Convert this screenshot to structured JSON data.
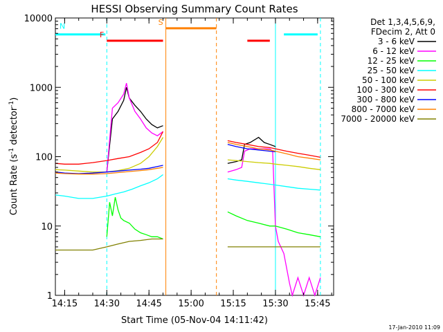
{
  "chart_data": {
    "type": "line",
    "title": "HESSI Observing Summary Count Rates",
    "xlabel": "Start Time (05-Nov-04 14:11:42)",
    "ylabel_main": "Count Rate (s",
    "ylabel_sup1": "-1",
    "ylabel_mid": " detector",
    "ylabel_sup2": "-1",
    "ylabel_end": ")",
    "y_scale": "log",
    "ylim": [
      1,
      10000
    ],
    "xlim": [
      "14:11:42",
      "15:50:42"
    ],
    "x_ticks": [
      "14:15",
      "14:30",
      "14:45",
      "15:00",
      "15:15",
      "15:30",
      "15:45"
    ],
    "y_ticks": [
      "1",
      "10",
      "100",
      "1000",
      "10000"
    ],
    "legend": {
      "header1": "Det 1,3,4,5,6,9,",
      "header2": "FDecim 2, Att 0",
      "items": [
        {
          "label": "3 - 6 keV",
          "color": "#000000"
        },
        {
          "label": "6 - 12 keV",
          "color": "#ff00ff"
        },
        {
          "label": "12 - 25 keV",
          "color": "#00ff00"
        },
        {
          "label": "25 - 50 keV",
          "color": "#00ffff"
        },
        {
          "label": "50 - 100 keV",
          "color": "#cccc00"
        },
        {
          "label": "100 - 300 keV",
          "color": "#ff0000"
        },
        {
          "label": "300 - 800 keV",
          "color": "#0000ff"
        },
        {
          "label": "800 - 7000 keV",
          "color": "#ff8000"
        },
        {
          "label": "7000 - 20000 keV",
          "color": "#808000"
        }
      ]
    },
    "flags": [
      {
        "label": "N",
        "color": "#00ffff",
        "value": 5800,
        "segments": [
          [
            "14:11:42",
            "14:29:30"
          ],
          [
            "15:33:00",
            "15:45:00"
          ]
        ]
      },
      {
        "label": "F",
        "color": "#ff0000",
        "value": 4700,
        "segments": [
          [
            "14:30:00",
            "14:50:00"
          ],
          [
            "15:20:00",
            "15:28:00"
          ]
        ]
      },
      {
        "label": "S",
        "color": "#ff8000",
        "value": 7100,
        "segments": [
          [
            "14:51:00",
            "15:09:00"
          ]
        ]
      }
    ],
    "saa_lines": [
      {
        "time": "14:30:00",
        "color": "#00ffff",
        "style": "dashed"
      },
      {
        "time": "14:51:00",
        "color": "#ff8000",
        "style": "solid"
      },
      {
        "time": "15:09:00",
        "color": "#ff8000",
        "style": "dashed"
      },
      {
        "time": "15:30:00",
        "color": "#00ffff",
        "style": "solid"
      },
      {
        "time": "15:46:00",
        "color": "#00ffff",
        "style": "dashed"
      }
    ],
    "series": [
      {
        "name": "3 - 6 keV",
        "color": "#000000",
        "segments": [
          {
            "x": [
              "14:30",
              "14:32",
              "14:34",
              "14:36",
              "14:37",
              "14:38",
              "14:40",
              "14:42",
              "14:44",
              "14:46",
              "14:48",
              "14:50"
            ],
            "y": [
              60,
              350,
              450,
              650,
              1000,
              700,
              550,
              450,
              350,
              290,
              260,
              280
            ]
          },
          {
            "x": [
              "15:13",
              "15:16",
              "15:18",
              "15:19",
              "15:21",
              "15:24",
              "15:26",
              "15:28",
              "15:30"
            ],
            "y": [
              80,
              85,
              90,
              150,
              160,
              190,
              160,
              150,
              140
            ]
          }
        ]
      },
      {
        "name": "6 - 12 keV",
        "color": "#ff00ff",
        "segments": [
          {
            "x": [
              "14:30",
              "14:32",
              "14:34",
              "14:36",
              "14:37",
              "14:38",
              "14:40",
              "14:42",
              "14:44",
              "14:46",
              "14:48",
              "14:50"
            ],
            "y": [
              60,
              500,
              600,
              800,
              1150,
              700,
              450,
              350,
              260,
              220,
              200,
              230
            ]
          },
          {
            "x": [
              "15:13",
              "15:16",
              "15:18",
              "15:19",
              "15:21",
              "15:24",
              "15:26",
              "15:28",
              "15:29",
              "15:30",
              "15:31",
              "15:33",
              "15:35",
              "15:36",
              "15:38",
              "15:40",
              "15:42",
              "15:44",
              "15:46"
            ],
            "y": [
              60,
              65,
              70,
              120,
              130,
              130,
              130,
              130,
              120,
              10,
              6,
              4,
              1.5,
              1,
              1.8,
              1,
              1.8,
              1,
              1.8
            ]
          }
        ]
      },
      {
        "name": "12 - 25 keV",
        "color": "#00ff00",
        "segments": [
          {
            "x": [
              "14:30",
              "14:31",
              "14:32",
              "14:33",
              "14:34",
              "14:35",
              "14:36",
              "14:38",
              "14:40",
              "14:42",
              "14:44",
              "14:46",
              "14:48",
              "14:50"
            ],
            "y": [
              7,
              22,
              14,
              26,
              17,
              13,
              12,
              11,
              9,
              8,
              7.5,
              7,
              7,
              6.5
            ]
          },
          {
            "x": [
              "15:13",
              "15:16",
              "15:20",
              "15:24",
              "15:28",
              "15:30",
              "15:34",
              "15:38",
              "15:42",
              "15:46"
            ],
            "y": [
              16,
              14,
              12,
              11,
              10,
              10,
              9,
              8,
              7.5,
              7
            ]
          }
        ]
      },
      {
        "name": "25 - 50 keV",
        "color": "#00ffff",
        "segments": [
          {
            "x": [
              "14:11:42",
              "14:15",
              "14:20",
              "14:25",
              "14:30",
              "14:33",
              "14:36",
              "14:39",
              "14:42",
              "14:45",
              "14:48",
              "14:50"
            ],
            "y": [
              28,
              27,
              25,
              25,
              27,
              29,
              31,
              34,
              38,
              42,
              48,
              55
            ]
          },
          {
            "x": [
              "15:13",
              "15:16",
              "15:20",
              "15:24",
              "15:28",
              "15:30",
              "15:34",
              "15:38",
              "15:42",
              "15:46"
            ],
            "y": [
              48,
              46,
              44,
              42,
              40,
              39,
              37,
              35,
              34,
              33
            ]
          }
        ]
      },
      {
        "name": "50 - 100 keV",
        "color": "#cccc00",
        "segments": [
          {
            "x": [
              "14:11:42",
              "14:15",
              "14:20",
              "14:25",
              "14:30",
              "14:34",
              "14:38",
              "14:42",
              "14:45",
              "14:48",
              "14:50"
            ],
            "y": [
              65,
              64,
              62,
              60,
              60,
              63,
              68,
              80,
              100,
              140,
              190
            ]
          },
          {
            "x": [
              "15:13",
              "15:16",
              "15:20",
              "15:24",
              "15:28",
              "15:30",
              "15:34",
              "15:38",
              "15:42",
              "15:46"
            ],
            "y": [
              90,
              88,
              85,
              82,
              80,
              78,
              75,
              72,
              68,
              65
            ]
          }
        ]
      },
      {
        "name": "100 - 300 keV",
        "color": "#ff0000",
        "segments": [
          {
            "x": [
              "14:11:42",
              "14:15",
              "14:20",
              "14:25",
              "14:30",
              "14:34",
              "14:38",
              "14:42",
              "14:45",
              "14:48",
              "14:50"
            ],
            "y": [
              80,
              78,
              78,
              82,
              88,
              94,
              100,
              115,
              130,
              160,
              230
            ]
          },
          {
            "x": [
              "15:13",
              "15:16",
              "15:20",
              "15:24",
              "15:28",
              "15:30",
              "15:34",
              "15:38",
              "15:42",
              "15:46"
            ],
            "y": [
              170,
              160,
              150,
              140,
              135,
              130,
              120,
              112,
              105,
              98
            ]
          }
        ]
      },
      {
        "name": "300 - 800 keV",
        "color": "#0000ff",
        "segments": [
          {
            "x": [
              "14:11:42",
              "14:15",
              "14:20",
              "14:25",
              "14:30",
              "14:34",
              "14:38",
              "14:42",
              "14:45",
              "14:48",
              "14:50"
            ],
            "y": [
              60,
              58,
              57,
              58,
              60,
              62,
              64,
              66,
              68,
              72,
              75
            ]
          },
          {
            "x": [
              "15:13",
              "15:16",
              "15:20",
              "15:24",
              "15:28",
              "15:30"
            ],
            "y": [
              150,
              140,
              130,
              125,
              120,
              118
            ]
          }
        ]
      },
      {
        "name": "800 - 7000 keV",
        "color": "#ff8000",
        "segments": [
          {
            "x": [
              "14:11:42",
              "14:15",
              "14:20",
              "14:25",
              "14:30",
              "14:34",
              "14:38",
              "14:42",
              "14:45",
              "14:48",
              "14:50"
            ],
            "y": [
              58,
              57,
              56,
              56,
              57,
              59,
              61,
              63,
              65,
              68,
              70
            ]
          },
          {
            "x": [
              "15:13",
              "15:16",
              "15:20",
              "15:24",
              "15:28",
              "15:30",
              "15:34",
              "15:38",
              "15:42",
              "15:46"
            ],
            "y": [
              160,
              150,
              140,
              130,
              125,
              120,
              110,
              100,
              95,
              90
            ]
          }
        ]
      },
      {
        "name": "7000 - 20000 keV",
        "color": "#808000",
        "segments": [
          {
            "x": [
              "14:11:42",
              "14:15",
              "14:20",
              "14:25",
              "14:30",
              "14:34",
              "14:38",
              "14:42",
              "14:46",
              "14:50"
            ],
            "y": [
              4.5,
              4.5,
              4.5,
              4.5,
              5,
              5.5,
              6,
              6.2,
              6.5,
              6.5
            ]
          },
          {
            "x": [
              "15:13",
              "15:16",
              "15:20",
              "15:24",
              "15:28",
              "15:30",
              "15:34",
              "15:38",
              "15:42",
              "15:46"
            ],
            "y": [
              5,
              5,
              5,
              5,
              5,
              5,
              5,
              5,
              5,
              5
            ]
          }
        ]
      }
    ]
  },
  "timestamp": "17-Jan-2010 11:09"
}
